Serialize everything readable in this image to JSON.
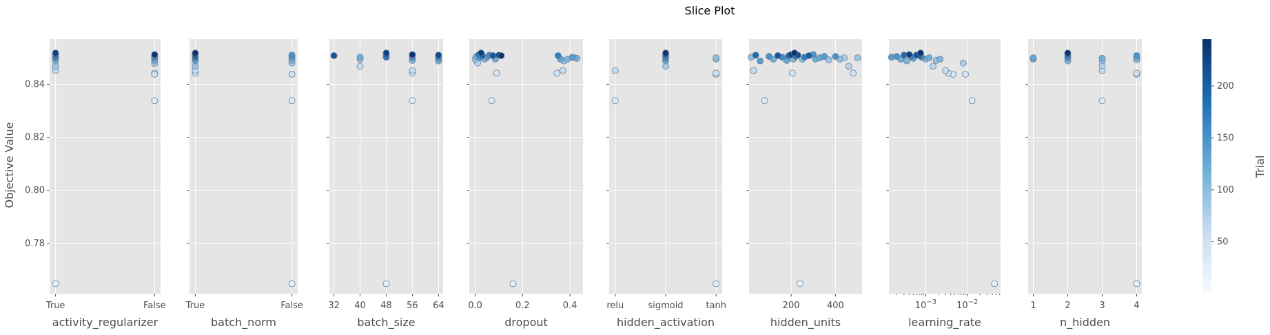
{
  "chart_data": {
    "type": "scatter",
    "title": "Slice Plot",
    "ylabel": "Objective Value",
    "ylim": [
      0.761,
      0.857
    ],
    "yticks": [
      0.78,
      0.8,
      0.82,
      0.84
    ],
    "ytick_labels": [
      "0.78",
      "0.80",
      "0.82",
      "0.84"
    ],
    "colorbar": {
      "label": "Trial",
      "range": [
        0,
        245
      ],
      "ticks": [
        50,
        100,
        150,
        200
      ],
      "tick_labels": [
        "50",
        "100",
        "150",
        "200"
      ],
      "colormap": "Blues",
      "colors": [
        "#f7fbff",
        "#c6dbef",
        "#6baed6",
        "#2171b5",
        "#08306b"
      ]
    },
    "grid": true,
    "subplots": [
      {
        "param": "activity_regularizer",
        "xlabel": "activity_regularizer",
        "scale": "categorical",
        "categories": [
          "True",
          "False"
        ],
        "xticks": [
          0,
          1
        ],
        "xtick_labels": [
          "True",
          "False"
        ],
        "points": [
          [
            0,
            0.7648,
            20
          ],
          [
            0,
            0.8452,
            60
          ],
          [
            0,
            0.8468,
            90
          ],
          [
            0,
            0.8488,
            110
          ],
          [
            0,
            0.8498,
            140
          ],
          [
            0,
            0.8502,
            170
          ],
          [
            0,
            0.8508,
            190
          ],
          [
            0,
            0.8513,
            210
          ],
          [
            0,
            0.8518,
            230
          ],
          [
            1,
            0.8338,
            30
          ],
          [
            1,
            0.8442,
            40
          ],
          [
            1,
            0.8438,
            50
          ],
          [
            1,
            0.8478,
            80
          ],
          [
            1,
            0.8488,
            100
          ],
          [
            1,
            0.8495,
            130
          ],
          [
            1,
            0.8502,
            160
          ],
          [
            1,
            0.8508,
            200
          ],
          [
            1,
            0.8512,
            240
          ]
        ]
      },
      {
        "param": "batch_norm",
        "xlabel": "batch_norm",
        "scale": "categorical",
        "categories": [
          "True",
          "False"
        ],
        "xticks": [
          0,
          1
        ],
        "xtick_labels": [
          "True",
          "False"
        ],
        "points": [
          [
            0,
            0.8442,
            40
          ],
          [
            0,
            0.8452,
            60
          ],
          [
            0,
            0.8468,
            90
          ],
          [
            0,
            0.8488,
            130
          ],
          [
            0,
            0.8498,
            170
          ],
          [
            0,
            0.8505,
            200
          ],
          [
            0,
            0.8512,
            220
          ],
          [
            0,
            0.8518,
            240
          ],
          [
            1,
            0.7648,
            20
          ],
          [
            1,
            0.8338,
            30
          ],
          [
            1,
            0.8438,
            50
          ],
          [
            1,
            0.848,
            80
          ],
          [
            1,
            0.849,
            100
          ],
          [
            1,
            0.8498,
            120
          ],
          [
            1,
            0.8505,
            140
          ],
          [
            1,
            0.851,
            150
          ]
        ]
      },
      {
        "param": "batch_size",
        "xlabel": "batch_size",
        "scale": "linear",
        "xlim": [
          30.6,
          65.4
        ],
        "xticks": [
          32,
          40,
          48,
          56,
          64
        ],
        "xtick_labels": [
          "32",
          "40",
          "48",
          "56",
          "64"
        ],
        "points": [
          [
            32,
            0.8508,
            210
          ],
          [
            40,
            0.8468,
            60
          ],
          [
            40,
            0.8495,
            90
          ],
          [
            40,
            0.8502,
            120
          ],
          [
            48,
            0.7648,
            20
          ],
          [
            48,
            0.8502,
            180
          ],
          [
            48,
            0.851,
            200
          ],
          [
            48,
            0.8518,
            230
          ],
          [
            56,
            0.8338,
            30
          ],
          [
            56,
            0.8442,
            40
          ],
          [
            56,
            0.8452,
            60
          ],
          [
            56,
            0.849,
            110
          ],
          [
            56,
            0.85,
            150
          ],
          [
            56,
            0.8508,
            190
          ],
          [
            56,
            0.8512,
            240
          ],
          [
            64,
            0.8488,
            100
          ],
          [
            64,
            0.8495,
            130
          ],
          [
            64,
            0.8502,
            170
          ],
          [
            64,
            0.851,
            220
          ]
        ]
      },
      {
        "param": "dropout",
        "xlabel": "dropout",
        "scale": "linear",
        "xlim": [
          -0.025,
          0.455
        ],
        "xticks": [
          0.0,
          0.2,
          0.4
        ],
        "xtick_labels": [
          "0.0",
          "0.2",
          "0.4"
        ],
        "points": [
          [
            0.0,
            0.8495,
            90
          ],
          [
            0.005,
            0.8505,
            120
          ],
          [
            0.01,
            0.848,
            70
          ],
          [
            0.015,
            0.8512,
            180
          ],
          [
            0.02,
            0.85,
            150
          ],
          [
            0.025,
            0.8518,
            230
          ],
          [
            0.03,
            0.8508,
            200
          ],
          [
            0.04,
            0.8495,
            110
          ],
          [
            0.05,
            0.8502,
            140
          ],
          [
            0.06,
            0.851,
            160
          ],
          [
            0.07,
            0.8338,
            30
          ],
          [
            0.075,
            0.8508,
            210
          ],
          [
            0.085,
            0.8495,
            120
          ],
          [
            0.09,
            0.8442,
            40
          ],
          [
            0.1,
            0.851,
            220
          ],
          [
            0.11,
            0.8508,
            240
          ],
          [
            0.16,
            0.7648,
            20
          ],
          [
            0.345,
            0.8442,
            50
          ],
          [
            0.35,
            0.8508,
            170
          ],
          [
            0.36,
            0.8495,
            130
          ],
          [
            0.37,
            0.8452,
            60
          ],
          [
            0.375,
            0.8488,
            90
          ],
          [
            0.39,
            0.8495,
            110
          ],
          [
            0.41,
            0.8502,
            140
          ],
          [
            0.42,
            0.85,
            120
          ],
          [
            0.43,
            0.8498,
            100
          ]
        ]
      },
      {
        "param": "hidden_activation",
        "xlabel": "hidden_activation",
        "scale": "categorical",
        "categories": [
          "relu",
          "sigmoid",
          "tanh"
        ],
        "xticks": [
          0,
          1,
          2
        ],
        "xtick_labels": [
          "relu",
          "sigmoid",
          "tanh"
        ],
        "points": [
          [
            0,
            0.8338,
            30
          ],
          [
            0,
            0.8452,
            60
          ],
          [
            1,
            0.8468,
            80
          ],
          [
            1,
            0.8488,
            110
          ],
          [
            1,
            0.8495,
            140
          ],
          [
            1,
            0.8502,
            170
          ],
          [
            1,
            0.8508,
            190
          ],
          [
            1,
            0.8512,
            210
          ],
          [
            1,
            0.8518,
            240
          ],
          [
            2,
            0.7648,
            20
          ],
          [
            2,
            0.8438,
            40
          ],
          [
            2,
            0.8442,
            50
          ],
          [
            2,
            0.8495,
            90
          ],
          [
            2,
            0.85,
            100
          ]
        ]
      },
      {
        "param": "hidden_units",
        "xlabel": "hidden_units",
        "scale": "linear",
        "xlim": [
          10,
          520
        ],
        "xticks": [
          200,
          400
        ],
        "xtick_labels": [
          "200",
          "400"
        ],
        "points": [
          [
            20,
            0.8502,
            100
          ],
          [
            30,
            0.8452,
            60
          ],
          [
            40,
            0.851,
            190
          ],
          [
            60,
            0.8488,
            140
          ],
          [
            80,
            0.8338,
            30
          ],
          [
            100,
            0.8505,
            150
          ],
          [
            120,
            0.8495,
            120
          ],
          [
            140,
            0.8508,
            210
          ],
          [
            160,
            0.8502,
            160
          ],
          [
            180,
            0.849,
            130
          ],
          [
            190,
            0.8508,
            200
          ],
          [
            200,
            0.8512,
            230
          ],
          [
            205,
            0.8442,
            40
          ],
          [
            210,
            0.8495,
            110
          ],
          [
            215,
            0.8518,
            240
          ],
          [
            220,
            0.8505,
            180
          ],
          [
            230,
            0.851,
            220
          ],
          [
            240,
            0.7648,
            20
          ],
          [
            250,
            0.8495,
            100
          ],
          [
            260,
            0.8502,
            170
          ],
          [
            280,
            0.8508,
            200
          ],
          [
            300,
            0.8512,
            150
          ],
          [
            310,
            0.8495,
            120
          ],
          [
            330,
            0.85,
            130
          ],
          [
            350,
            0.8505,
            140
          ],
          [
            370,
            0.8492,
            90
          ],
          [
            400,
            0.8505,
            150
          ],
          [
            420,
            0.8495,
            100
          ],
          [
            440,
            0.85,
            80
          ],
          [
            460,
            0.8468,
            70
          ],
          [
            480,
            0.8442,
            50
          ],
          [
            500,
            0.85,
            90
          ]
        ]
      },
      {
        "param": "learning_rate",
        "xlabel": "learning_rate",
        "scale": "log",
        "xlim": [
          0.00013,
          0.063
        ],
        "xticks": [
          0.001,
          0.01
        ],
        "xtick_labels": [
          "10^-3",
          "10^-2"
        ],
        "points": [
          [
            0.00015,
            0.8502,
            140
          ],
          [
            0.0002,
            0.8505,
            150
          ],
          [
            0.00025,
            0.8495,
            120
          ],
          [
            0.0003,
            0.851,
            190
          ],
          [
            0.00035,
            0.8488,
            110
          ],
          [
            0.0004,
            0.8512,
            230
          ],
          [
            0.00045,
            0.8505,
            170
          ],
          [
            0.0005,
            0.8498,
            130
          ],
          [
            0.0006,
            0.851,
            210
          ],
          [
            0.0007,
            0.8508,
            200
          ],
          [
            0.00075,
            0.8518,
            240
          ],
          [
            0.0008,
            0.8502,
            160
          ],
          [
            0.001,
            0.8495,
            100
          ],
          [
            0.0012,
            0.85,
            120
          ],
          [
            0.0015,
            0.8468,
            70
          ],
          [
            0.0018,
            0.849,
            90
          ],
          [
            0.0022,
            0.8495,
            110
          ],
          [
            0.003,
            0.8452,
            60
          ],
          [
            0.0035,
            0.8442,
            50
          ],
          [
            0.0045,
            0.8438,
            40
          ],
          [
            0.008,
            0.848,
            80
          ],
          [
            0.009,
            0.8438,
            40
          ],
          [
            0.013,
            0.8338,
            30
          ],
          [
            0.045,
            0.7648,
            20
          ]
        ]
      },
      {
        "param": "n_hidden",
        "xlabel": "n_hidden",
        "scale": "linear",
        "xlim": [
          0.85,
          4.15
        ],
        "xticks": [
          1,
          2,
          3,
          4
        ],
        "xtick_labels": [
          "1",
          "2",
          "3",
          "4"
        ],
        "points": [
          [
            1,
            0.8495,
            110
          ],
          [
            1,
            0.85,
            130
          ],
          [
            2,
            0.8488,
            100
          ],
          [
            2,
            0.8498,
            140
          ],
          [
            2,
            0.8505,
            170
          ],
          [
            2,
            0.8512,
            200
          ],
          [
            2,
            0.8518,
            240
          ],
          [
            3,
            0.8338,
            30
          ],
          [
            3,
            0.8452,
            60
          ],
          [
            3,
            0.847,
            70
          ],
          [
            3,
            0.8488,
            90
          ],
          [
            3,
            0.8498,
            120
          ],
          [
            4,
            0.7648,
            20
          ],
          [
            4,
            0.8438,
            40
          ],
          [
            4,
            0.8442,
            50
          ],
          [
            4,
            0.8492,
            90
          ],
          [
            4,
            0.85,
            120
          ],
          [
            4,
            0.8508,
            150
          ]
        ]
      }
    ]
  }
}
